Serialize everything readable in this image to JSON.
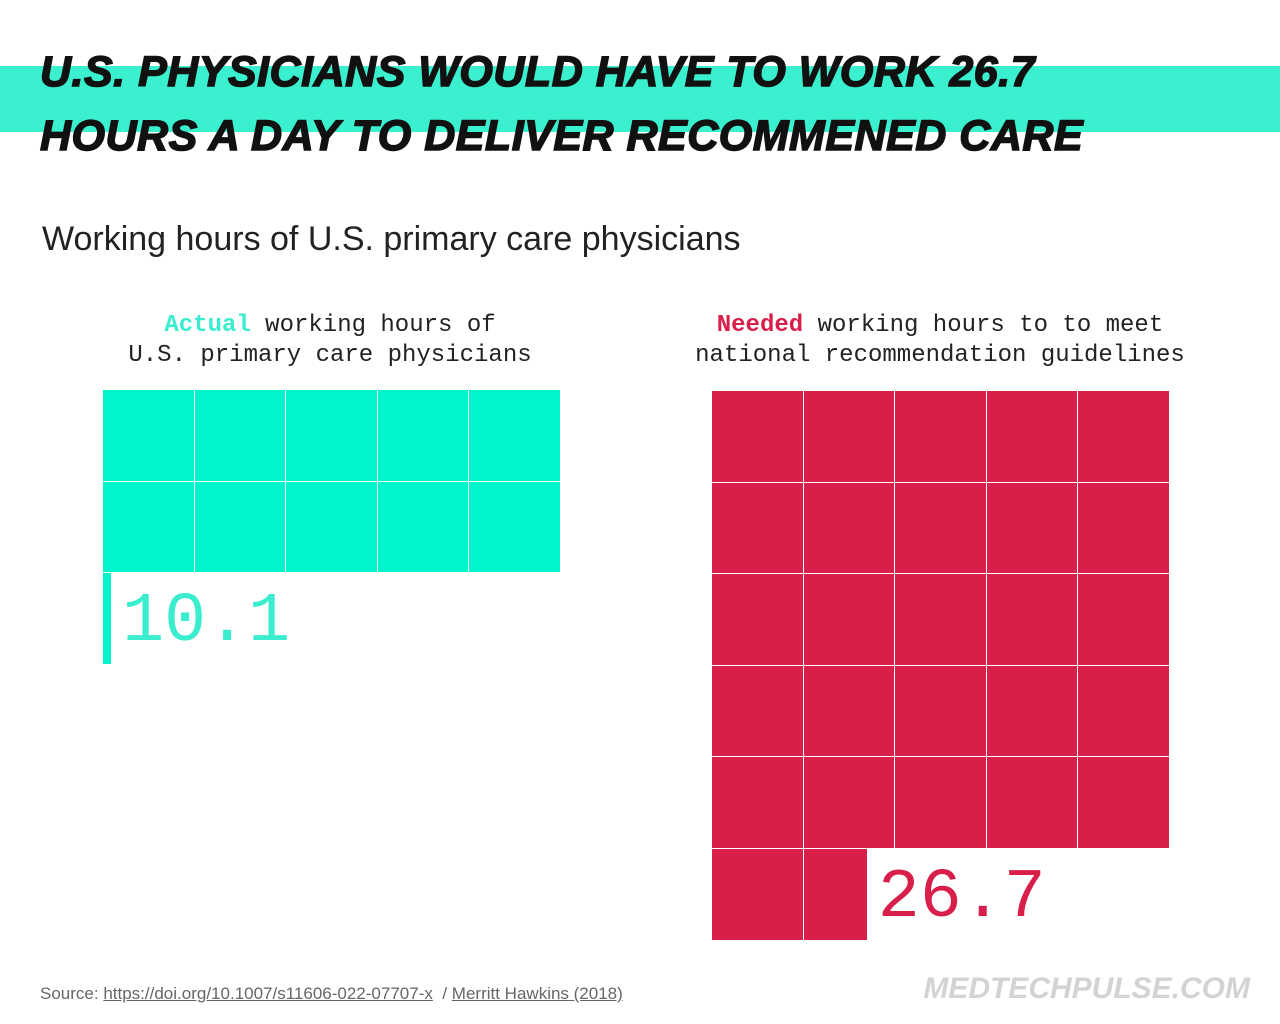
{
  "title_lines": [
    "U.S. PHYSICIANS WOULD HAVE TO WORK 26.7",
    "HOURS A DAY TO DELIVER RECOMMENED CARE"
  ],
  "subtitle": "Working hours of U.S. primary care physicians",
  "chart_data": {
    "type": "waffle",
    "units_per_row": 5,
    "series": [
      {
        "highlight": "Actual",
        "caption_rest1": " working hours of",
        "caption_line2": "U.S. primary care physicians",
        "value": 10.1,
        "label": "10.1",
        "color": "#00f5cc",
        "label_color": "#3aedce"
      },
      {
        "highlight": "Needed",
        "caption_rest1": " working hours to to meet",
        "caption_line2": "national recommendation guidelines",
        "value": 26.7,
        "label": "26.7",
        "color": "#d81f4a",
        "label_color": "#d81f4a"
      }
    ]
  },
  "footer": {
    "source_label": "Source:",
    "link1": "https://doi.org/10.1007/s11606-022-07707-x",
    "separator": "/",
    "link2": "Merritt Hawkins (2018)",
    "logo": "MEDTECHPULSE.COM"
  }
}
